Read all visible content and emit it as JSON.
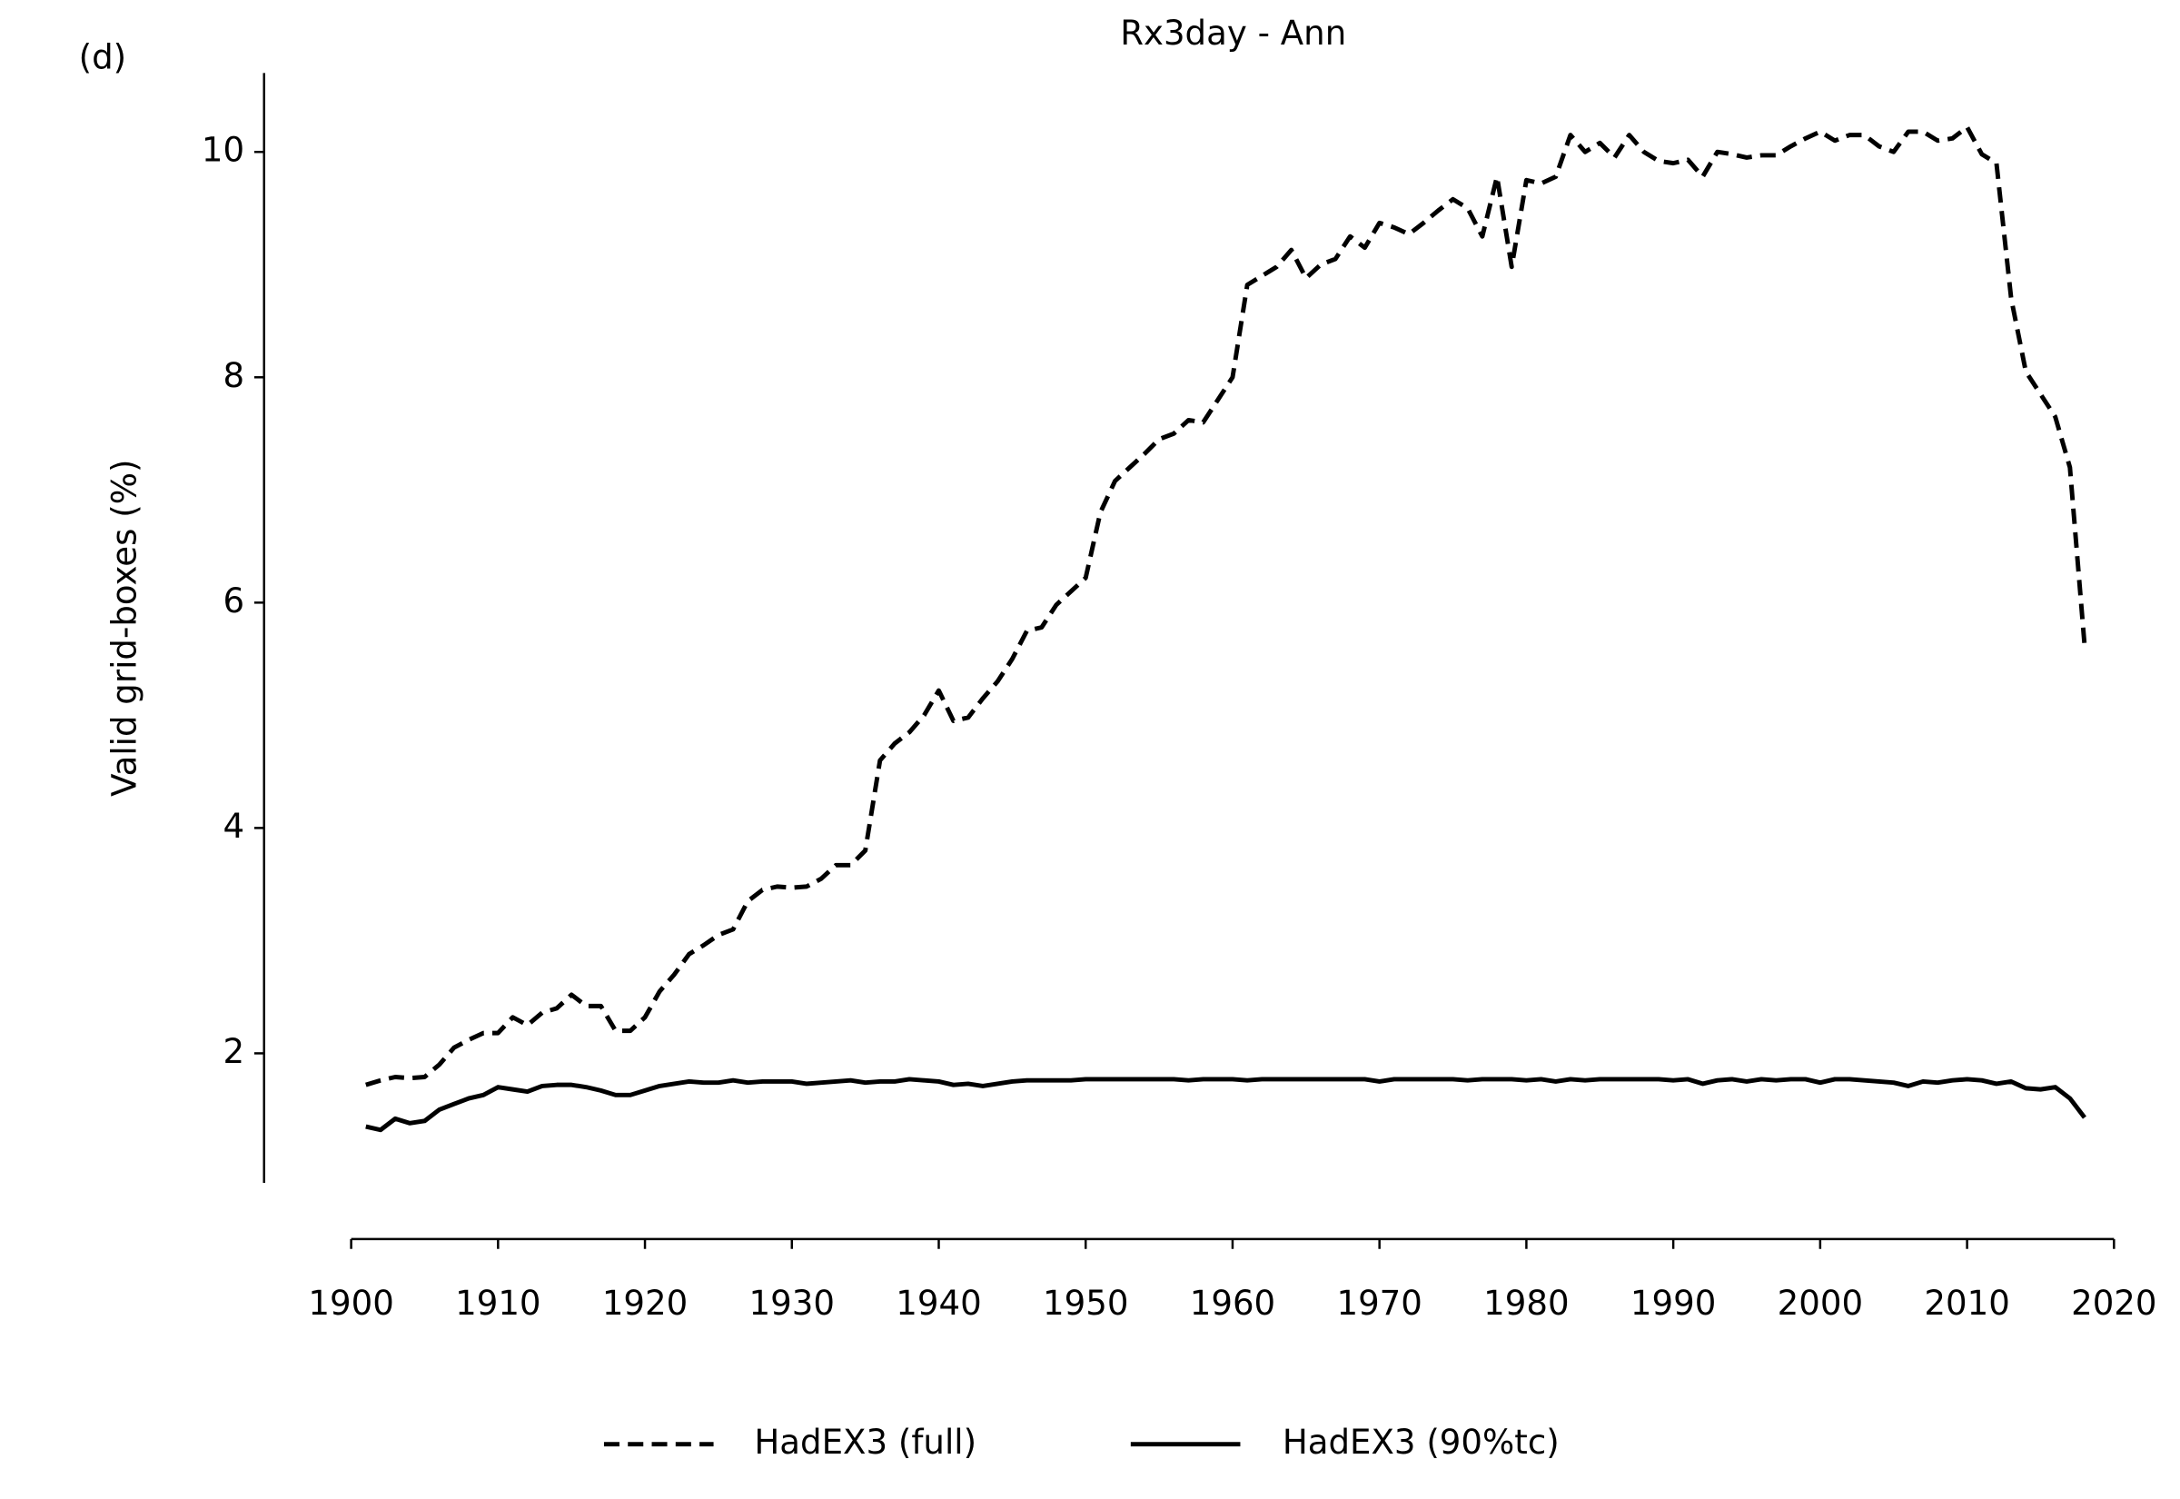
{
  "chart_data": {
    "type": "line",
    "title": "Rx3day - Ann",
    "panel_label": "(d)",
    "y_label": "Valid grid-boxes (%)",
    "x": [
      1901,
      1902,
      1903,
      1904,
      1905,
      1906,
      1907,
      1908,
      1909,
      1910,
      1911,
      1912,
      1913,
      1914,
      1915,
      1916,
      1917,
      1918,
      1919,
      1920,
      1921,
      1922,
      1923,
      1924,
      1925,
      1926,
      1927,
      1928,
      1929,
      1930,
      1931,
      1932,
      1933,
      1934,
      1935,
      1936,
      1937,
      1938,
      1939,
      1940,
      1941,
      1942,
      1943,
      1944,
      1945,
      1946,
      1947,
      1948,
      1949,
      1950,
      1951,
      1952,
      1953,
      1954,
      1955,
      1956,
      1957,
      1958,
      1959,
      1960,
      1961,
      1962,
      1963,
      1964,
      1965,
      1966,
      1967,
      1968,
      1969,
      1970,
      1971,
      1972,
      1973,
      1974,
      1975,
      1976,
      1977,
      1978,
      1979,
      1980,
      1981,
      1982,
      1983,
      1984,
      1985,
      1986,
      1987,
      1988,
      1989,
      1990,
      1991,
      1992,
      1993,
      1994,
      1995,
      1996,
      1997,
      1998,
      1999,
      2000,
      2001,
      2002,
      2003,
      2004,
      2005,
      2006,
      2007,
      2008,
      2009,
      2010,
      2011,
      2012,
      2013,
      2014,
      2015,
      2016,
      2017,
      2018
    ],
    "series": [
      {
        "name": "HadEX3 (full)",
        "color": "#000000",
        "linestyle": "dashed",
        "values": [
          1.72,
          1.76,
          1.79,
          1.78,
          1.79,
          1.9,
          2.05,
          2.12,
          2.18,
          2.18,
          2.32,
          2.25,
          2.36,
          2.4,
          2.52,
          2.42,
          2.42,
          2.2,
          2.2,
          2.32,
          2.55,
          2.7,
          2.88,
          2.96,
          3.05,
          3.1,
          3.35,
          3.45,
          3.48,
          3.47,
          3.48,
          3.55,
          3.67,
          3.67,
          3.8,
          4.6,
          4.75,
          4.85,
          5.0,
          5.22,
          4.95,
          4.98,
          5.15,
          5.3,
          5.5,
          5.75,
          5.78,
          5.98,
          6.1,
          6.22,
          6.8,
          7.08,
          7.2,
          7.32,
          7.45,
          7.5,
          7.62,
          7.6,
          7.8,
          8.0,
          8.82,
          8.9,
          8.98,
          9.13,
          8.88,
          9.0,
          9.05,
          9.25,
          9.15,
          9.37,
          9.33,
          9.27,
          9.37,
          9.48,
          9.58,
          9.5,
          9.25,
          9.78,
          8.98,
          9.75,
          9.72,
          9.78,
          10.15,
          10.0,
          10.08,
          9.95,
          10.15,
          10.0,
          9.92,
          9.9,
          9.93,
          9.78,
          10.0,
          9.98,
          9.95,
          9.97,
          9.97,
          10.05,
          10.12,
          10.18,
          10.1,
          10.15,
          10.15,
          10.05,
          10.0,
          10.18,
          10.18,
          10.1,
          10.12,
          10.22,
          9.98,
          9.9,
          8.7,
          8.05,
          7.85,
          7.65,
          7.2,
          5.62
        ]
      },
      {
        "name": "HadEX3 (90%tc)",
        "color": "#000000",
        "linestyle": "solid",
        "values": [
          1.35,
          1.32,
          1.42,
          1.38,
          1.4,
          1.5,
          1.55,
          1.6,
          1.63,
          1.7,
          1.68,
          1.66,
          1.71,
          1.72,
          1.72,
          1.7,
          1.67,
          1.63,
          1.63,
          1.67,
          1.71,
          1.73,
          1.75,
          1.74,
          1.74,
          1.76,
          1.74,
          1.75,
          1.75,
          1.75,
          1.73,
          1.74,
          1.75,
          1.76,
          1.74,
          1.75,
          1.75,
          1.77,
          1.76,
          1.75,
          1.72,
          1.73,
          1.71,
          1.73,
          1.75,
          1.76,
          1.76,
          1.76,
          1.76,
          1.77,
          1.77,
          1.77,
          1.77,
          1.77,
          1.77,
          1.77,
          1.76,
          1.77,
          1.77,
          1.77,
          1.76,
          1.77,
          1.77,
          1.77,
          1.77,
          1.77,
          1.77,
          1.77,
          1.77,
          1.75,
          1.77,
          1.77,
          1.77,
          1.77,
          1.77,
          1.76,
          1.77,
          1.77,
          1.77,
          1.76,
          1.77,
          1.75,
          1.77,
          1.76,
          1.77,
          1.77,
          1.77,
          1.77,
          1.77,
          1.76,
          1.77,
          1.73,
          1.76,
          1.77,
          1.75,
          1.77,
          1.76,
          1.77,
          1.77,
          1.74,
          1.77,
          1.77,
          1.76,
          1.75,
          1.74,
          1.71,
          1.75,
          1.74,
          1.76,
          1.77,
          1.76,
          1.73,
          1.75,
          1.69,
          1.68,
          1.7,
          1.6,
          1.43
        ]
      }
    ],
    "xlim": [
      1900,
      2020
    ],
    "xticks": [
      1900,
      1910,
      1920,
      1930,
      1940,
      1950,
      1960,
      1970,
      1980,
      1990,
      2000,
      2010,
      2020
    ],
    "ylim": [
      0.85,
      10.7
    ],
    "yticks": [
      2,
      4,
      6,
      8,
      10
    ],
    "grid": false,
    "legend": "bottom"
  }
}
